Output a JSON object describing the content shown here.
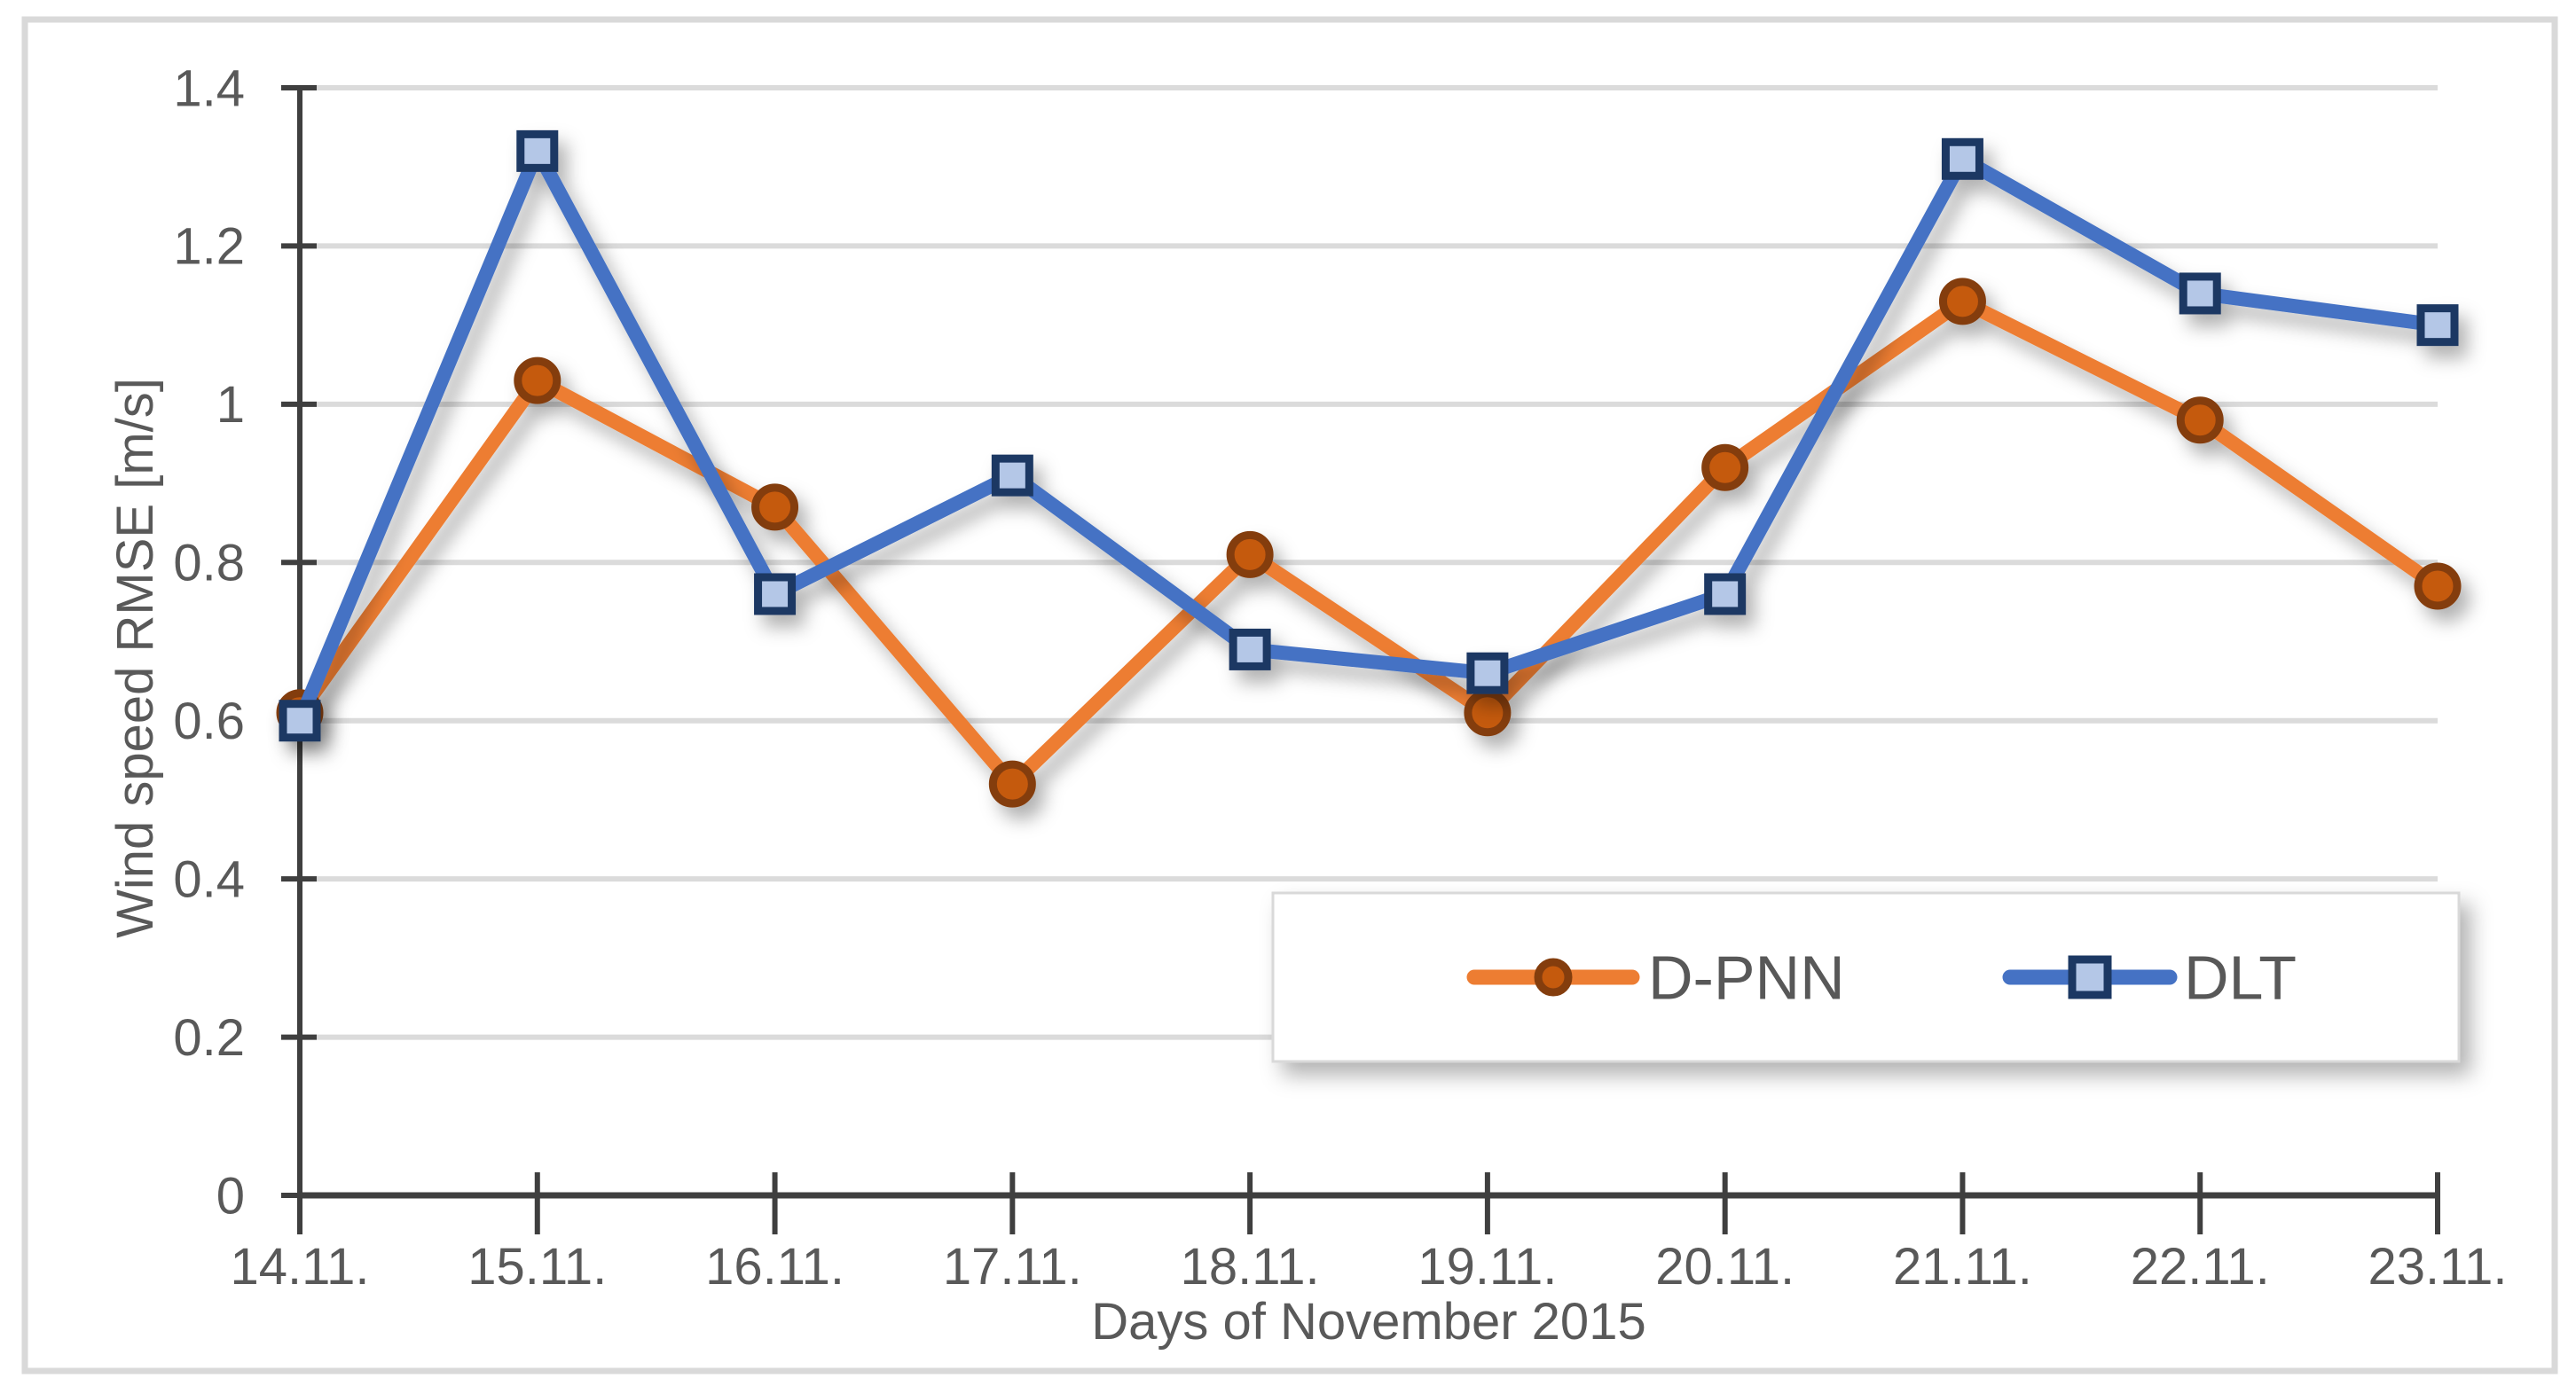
{
  "chart_data": {
    "type": "line",
    "title": "",
    "xlabel": "Days of November 2015",
    "ylabel": "Wind speed RMSE [m/s]",
    "categories": [
      "14.11.",
      "15.11.",
      "16.11.",
      "17.11.",
      "18.11.",
      "19.11.",
      "20.11.",
      "21.11.",
      "22.11.",
      "23.11."
    ],
    "series": [
      {
        "name": "D-PNN",
        "marker": "circle",
        "values": [
          0.61,
          1.03,
          0.87,
          0.52,
          0.81,
          0.61,
          0.92,
          1.13,
          0.98,
          0.77
        ],
        "line_color": "#ED7D31",
        "marker_fill": "#C55A11",
        "marker_border": "#843C0C"
      },
      {
        "name": "DLT",
        "marker": "square",
        "values": [
          0.6,
          1.32,
          0.76,
          0.91,
          0.69,
          0.66,
          0.76,
          1.31,
          1.14,
          1.1
        ],
        "line_color": "#4472C4",
        "marker_fill": "#B4C7E7",
        "marker_border": "#1F3864"
      }
    ],
    "ylim": [
      0,
      1.4
    ],
    "ytick_step": 0.2,
    "ytick_labels": [
      "0",
      "0.2",
      "0.4",
      "0.6",
      "0.8",
      "1",
      "1.2",
      "1.4"
    ],
    "grid": true,
    "legend_position": "inside-bottom-right"
  },
  "style_colors": {
    "axis": "#3F3F3F",
    "gridline": "#DBDBDB",
    "frame_border": "#D9D9D9",
    "text": "#595959",
    "legend_background": "#FFFFFF"
  }
}
